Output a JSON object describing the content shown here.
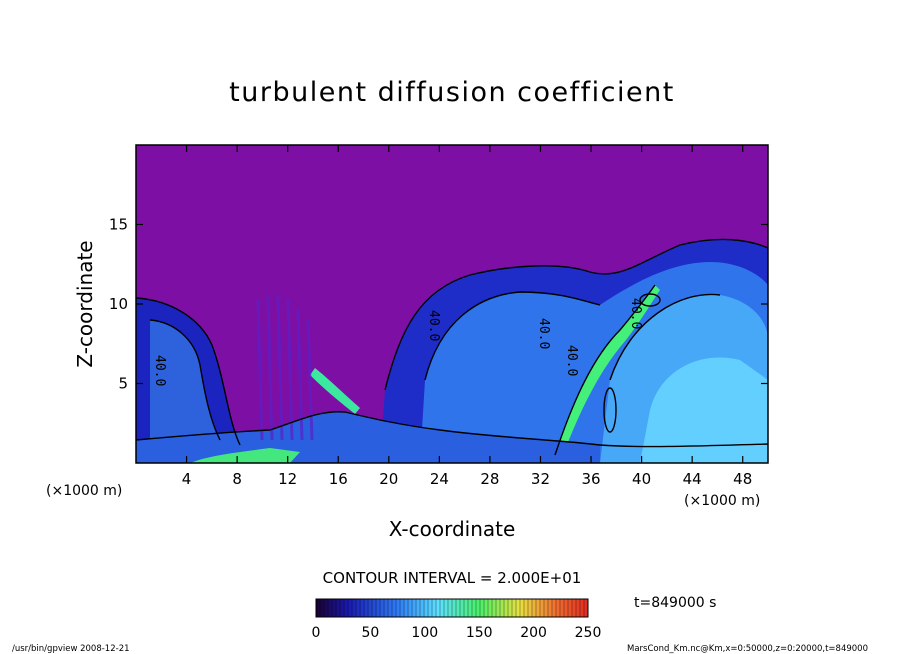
{
  "chart_data": {
    "type": "heatmap",
    "title": "turbulent diffusion coefficient",
    "xlabel": "X-coordinate",
    "ylabel": "Z-coordinate",
    "x_unit": "(×1000 m)",
    "y_unit": "(×1000 m)",
    "xlim": [
      0,
      50
    ],
    "ylim": [
      0,
      20
    ],
    "x_ticks": [
      4,
      8,
      12,
      16,
      20,
      24,
      28,
      32,
      36,
      40,
      44,
      48
    ],
    "y_ticks": [
      5,
      10,
      15
    ],
    "contour_interval_text": "CONTOUR INTERVAL = 2.000E+01",
    "contour_labels": [
      "40.0",
      "40.0",
      "40.0",
      "40.0",
      "40.0"
    ],
    "colorbar": {
      "min": 0,
      "max": 250,
      "ticks": [
        0,
        50,
        100,
        150,
        200,
        250
      ]
    },
    "time_text": "t=849000 s",
    "footer_left": "/usr/bin/gpview   2008-12-21",
    "footer_right": "MarsCond_Km.nc@Km,x=0:50000,z=0:20000,t=849000",
    "colors": {
      "background_field": "#7e0fa4",
      "low": "#1c20c8",
      "mid": "#2f78f0",
      "high": "#58d8ff",
      "peak": "#34f07a"
    }
  }
}
